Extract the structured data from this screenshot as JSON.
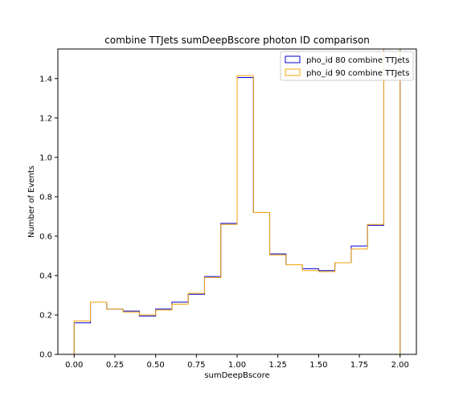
{
  "chart_data": {
    "type": "step-histogram",
    "title": "combine TTJets sumDeepBscore photon ID comparison",
    "xlabel": "sumDeepBscore",
    "ylabel": "Number of Events",
    "xlim": [
      -0.1,
      2.1
    ],
    "ylim": [
      0.0,
      1.55
    ],
    "xticks": [
      "0.00",
      "0.25",
      "0.50",
      "0.75",
      "1.00",
      "1.25",
      "1.50",
      "1.75",
      "2.00"
    ],
    "yticks": [
      "0.0",
      "0.2",
      "0.4",
      "0.6",
      "0.8",
      "1.0",
      "1.2",
      "1.4"
    ],
    "bin_edges": [
      0.0,
      0.1,
      0.2,
      0.3,
      0.4,
      0.5,
      0.6,
      0.7,
      0.8,
      0.9,
      1.0,
      1.1,
      1.2,
      1.3,
      1.4,
      1.5,
      1.6,
      1.7,
      1.8,
      1.9,
      2.0
    ],
    "series": [
      {
        "name": "pho_id 80 combine TTJets",
        "color": "#0000cc",
        "values": [
          0.16,
          0.265,
          0.23,
          0.22,
          0.195,
          0.23,
          0.265,
          0.305,
          0.395,
          0.665,
          1.405,
          0.72,
          0.51,
          0.455,
          0.435,
          0.425,
          0.465,
          0.55,
          0.655,
          1.55
        ]
      },
      {
        "name": "pho_id 90 combine TTJets",
        "color": "#f0a30a",
        "values": [
          0.17,
          0.265,
          0.23,
          0.215,
          0.2,
          0.225,
          0.255,
          0.31,
          0.39,
          0.66,
          1.415,
          0.72,
          0.505,
          0.455,
          0.425,
          0.42,
          0.465,
          0.535,
          0.66,
          1.55
        ]
      }
    ],
    "legend_position": "top-right",
    "grid": false
  }
}
